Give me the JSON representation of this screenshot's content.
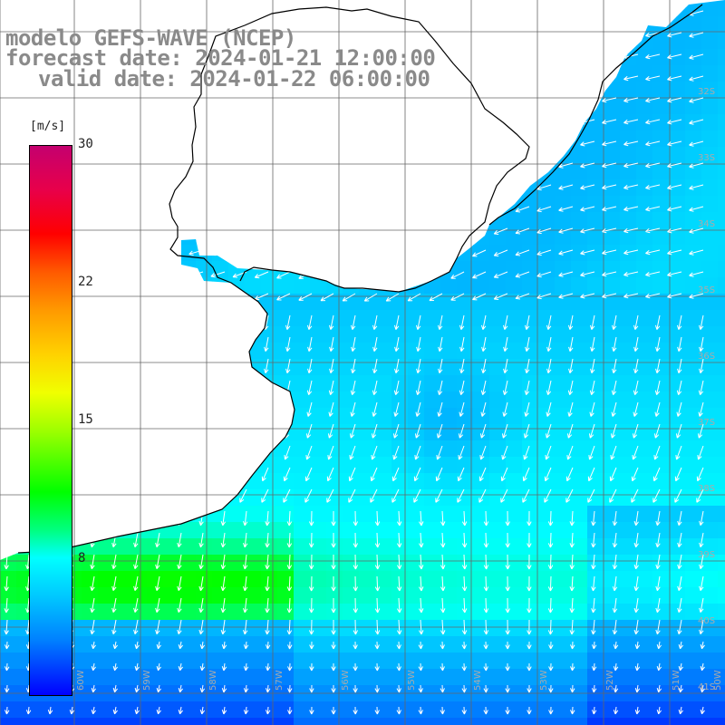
{
  "title": {
    "line1": "modelo GEFS-WAVE (NCEP)",
    "line2": "forecast date: 2024-01-21 12:00:00",
    "line3": "valid date: 2024-01-22 06:00:00"
  },
  "colorbar": {
    "unit": "[m/s]",
    "ticks": [
      "30",
      "22",
      "15",
      "8"
    ],
    "colors": [
      "#c4006f",
      "#ff0000",
      "#ff9a00",
      "#f0ff00",
      "#00ff00",
      "#00ffff",
      "#0080ff",
      "#0000ff"
    ]
  },
  "lat_labels": [
    "32S",
    "33S",
    "34S",
    "35S",
    "36S",
    "37S",
    "38S",
    "39S",
    "40S",
    "41S"
  ],
  "lon_labels": [
    "60W",
    "59W",
    "58W",
    "57W",
    "56W",
    "55W",
    "54W",
    "53W",
    "52W",
    "51W",
    "50W"
  ],
  "field": {
    "variable": "wind speed",
    "unit": "m/s",
    "range": [
      0,
      30
    ],
    "coast_region": "Uruguay / Rio de la Plata / South Brazil"
  }
}
